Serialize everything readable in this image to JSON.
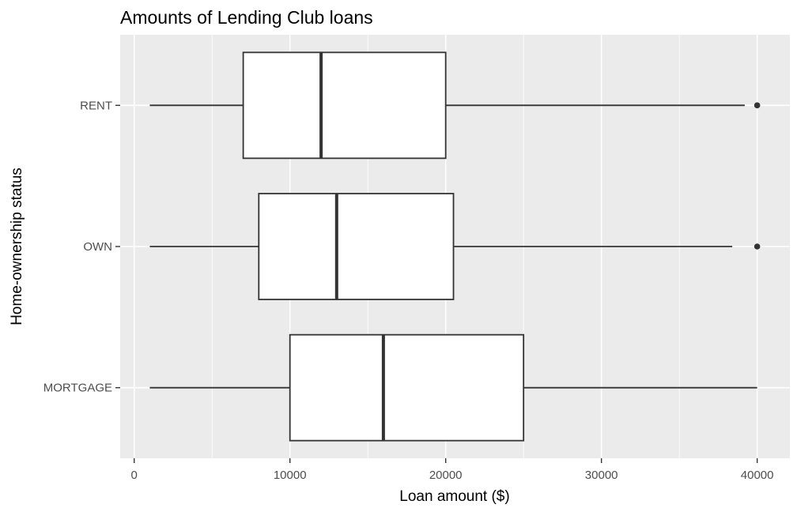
{
  "chart_data": {
    "type": "boxplot",
    "orientation": "horizontal",
    "title": "Amounts of Lending Club loans",
    "xlabel": "Loan amount ($)",
    "ylabel": "Home-ownership status",
    "xlim": [
      -900,
      42100
    ],
    "xticks": [
      0,
      10000,
      20000,
      30000,
      40000
    ],
    "grid": true,
    "legend": "none",
    "categories": [
      "MORTGAGE",
      "OWN",
      "RENT"
    ],
    "boxes": [
      {
        "category": "MORTGAGE",
        "whisker_low": 1000,
        "q1": 10000,
        "median": 16000,
        "q3": 25000,
        "whisker_high": 40000,
        "outliers": []
      },
      {
        "category": "OWN",
        "whisker_low": 1000,
        "q1": 8000,
        "median": 13000,
        "q3": 20500,
        "whisker_high": 38400,
        "outliers": [
          40000
        ]
      },
      {
        "category": "RENT",
        "whisker_low": 1000,
        "q1": 7000,
        "median": 12000,
        "q3": 20000,
        "whisker_high": 39200,
        "outliers": [
          40000
        ]
      }
    ],
    "colors": {
      "panel_background": "#ebebeb",
      "grid": "#ffffff",
      "box_fill": "#ffffff",
      "box_stroke": "#333333",
      "tick_text": "#4d4d4d"
    }
  }
}
